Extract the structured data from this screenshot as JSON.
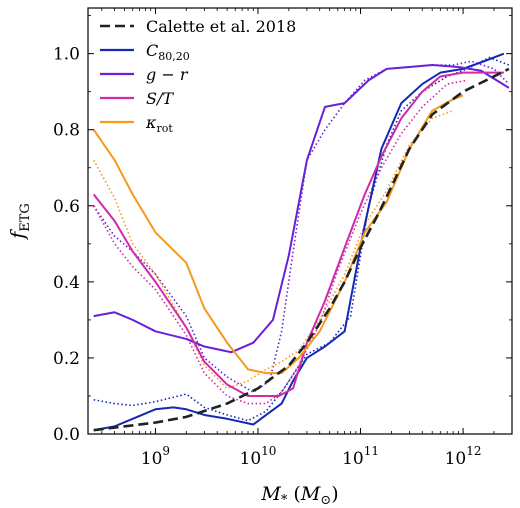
{
  "chart_data": {
    "type": "line",
    "xscale": "log",
    "xlim": [
      220000000.0,
      3000000000000.0
    ],
    "ylim": [
      0.0,
      1.12
    ],
    "x_ticks": [
      {
        "value": 1000000000.0,
        "base": "10",
        "exp": "9"
      },
      {
        "value": 10000000000.0,
        "base": "10",
        "exp": "10"
      },
      {
        "value": 100000000000.0,
        "base": "10",
        "exp": "11"
      },
      {
        "value": 1000000000000.0,
        "base": "10",
        "exp": "12"
      }
    ],
    "y_ticks": [
      {
        "value": 0.0,
        "label": "0.0"
      },
      {
        "value": 0.2,
        "label": "0.2"
      },
      {
        "value": 0.4,
        "label": "0.4"
      },
      {
        "value": 0.6,
        "label": "0.6"
      },
      {
        "value": 0.8,
        "label": "0.8"
      },
      {
        "value": 1.0,
        "label": "1.0"
      }
    ],
    "xlabel": {
      "main": "M",
      "sub": "*",
      "unit_open": " (M",
      "unit_sub": "⊙",
      "unit_close": ")"
    },
    "ylabel": {
      "main": "f",
      "sub": "ETG"
    },
    "legend_position": "top-left",
    "series": [
      {
        "name": "Calette et al. 2018",
        "color": "#222222",
        "style": "dashed",
        "x": [
          250000000.0,
          500000000.0,
          1000000000.0,
          2000000000.0,
          5000000000.0,
          10000000000.0,
          20000000000.0,
          30000000000.0,
          50000000000.0,
          70000000000.0,
          100000000000.0,
          150000000000.0,
          200000000000.0,
          300000000000.0,
          500000000000.0,
          1000000000000.0,
          2000000000000.0,
          2800000000000.0
        ],
        "y": [
          0.01,
          0.02,
          0.03,
          0.045,
          0.08,
          0.12,
          0.18,
          0.24,
          0.33,
          0.4,
          0.49,
          0.58,
          0.65,
          0.75,
          0.84,
          0.9,
          0.94,
          0.96
        ]
      },
      {
        "name": "C80,20",
        "label_main": "C",
        "label_sub": "80,20",
        "color": "#1428b4",
        "style": "solid",
        "x": [
          250000000.0,
          400000000.0,
          600000000.0,
          1000000000.0,
          1500000000.0,
          2000000000.0,
          3000000000.0,
          5000000000.0,
          9000000000.0,
          12000000000.0,
          17000000000.0,
          22000000000.0,
          30000000000.0,
          45000000000.0,
          70000000000.0,
          110000000000.0,
          160000000000.0,
          250000000000.0,
          400000000000.0,
          600000000000.0,
          1000000000000.0,
          1600000000000.0,
          2500000000000.0
        ],
        "y": [
          0.01,
          0.02,
          0.04,
          0.065,
          0.07,
          0.065,
          0.05,
          0.04,
          0.025,
          0.05,
          0.08,
          0.14,
          0.2,
          0.23,
          0.27,
          0.55,
          0.75,
          0.87,
          0.92,
          0.95,
          0.96,
          0.98,
          1.0
        ]
      },
      {
        "name": "C80,20 (dotted)",
        "color": "#1428b4",
        "style": "dotted",
        "x": [
          250000000.0,
          400000000.0,
          600000000.0,
          1000000000.0,
          2000000000.0,
          3000000000.0,
          5000000000.0,
          8000000000.0,
          12000000000.0,
          18000000000.0,
          30000000000.0,
          50000000000.0,
          80000000000.0,
          120000000000.0,
          180000000000.0,
          250000000000.0,
          400000000000.0,
          700000000000.0,
          1100000000000.0,
          1800000000000.0,
          2800000000000.0
        ],
        "y": [
          0.09,
          0.08,
          0.075,
          0.085,
          0.105,
          0.07,
          0.05,
          0.035,
          0.06,
          0.12,
          0.21,
          0.24,
          0.31,
          0.6,
          0.76,
          0.85,
          0.9,
          0.94,
          0.96,
          0.99,
          0.97
        ]
      },
      {
        "name": "g − r",
        "color": "#6a1fd8",
        "style": "solid",
        "x": [
          250000000.0,
          400000000.0,
          600000000.0,
          1000000000.0,
          2000000000.0,
          3000000000.0,
          5500000000.0,
          9000000000.0,
          14000000000.0,
          20000000000.0,
          30000000000.0,
          45000000000.0,
          70000000000.0,
          120000000000.0,
          180000000000.0,
          300000000000.0,
          500000000000.0,
          900000000000.0,
          1500000000000.0,
          2800000000000.0
        ],
        "y": [
          0.31,
          0.32,
          0.3,
          0.27,
          0.25,
          0.23,
          0.215,
          0.24,
          0.3,
          0.47,
          0.72,
          0.86,
          0.87,
          0.93,
          0.96,
          0.965,
          0.97,
          0.965,
          0.955,
          0.91
        ]
      },
      {
        "name": "g − r (dotted)",
        "color": "#6a1fd8",
        "style": "dotted",
        "x": [
          250000000.0,
          400000000.0,
          600000000.0,
          1000000000.0,
          2000000000.0,
          3000000000.0,
          5000000000.0,
          9000000000.0,
          13000000000.0,
          17000000000.0,
          22000000000.0,
          30000000000.0,
          45000000000.0,
          70000000000.0,
          110000000000.0,
          180000000000.0,
          300000000000.0,
          500000000000.0,
          800000000000.0,
          1200000000000.0,
          2000000000000.0,
          2800000000000.0
        ],
        "y": [
          0.6,
          0.52,
          0.48,
          0.42,
          0.31,
          0.2,
          0.15,
          0.11,
          0.14,
          0.27,
          0.48,
          0.72,
          0.8,
          0.87,
          0.93,
          0.96,
          0.965,
          0.97,
          0.97,
          0.98,
          0.96,
          0.92
        ]
      },
      {
        "name": "S/T",
        "label_main": "S/T",
        "color": "#cf2aa8",
        "style": "solid",
        "x": [
          250000000.0,
          400000000.0,
          600000000.0,
          1000000000.0,
          2000000000.0,
          3000000000.0,
          5000000000.0,
          8000000000.0,
          12000000000.0,
          16000000000.0,
          22000000000.0,
          30000000000.0,
          45000000000.0,
          70000000000.0,
          110000000000.0,
          160000000000.0,
          250000000000.0,
          400000000000.0,
          600000000000.0,
          1000000000000.0,
          1600000000000.0,
          2500000000000.0
        ],
        "y": [
          0.63,
          0.56,
          0.48,
          0.4,
          0.28,
          0.19,
          0.13,
          0.1,
          0.1,
          0.1,
          0.12,
          0.24,
          0.35,
          0.49,
          0.63,
          0.73,
          0.83,
          0.9,
          0.94,
          0.95,
          0.95,
          0.95
        ]
      },
      {
        "name": "S/T (dotted)",
        "color": "#cf2aa8",
        "style": "dotted",
        "x": [
          250000000.0,
          400000000.0,
          600000000.0,
          1000000000.0,
          2000000000.0,
          3000000000.0,
          5000000000.0,
          8000000000.0,
          12000000000.0,
          17000000000.0,
          25000000000.0,
          40000000000.0,
          60000000000.0,
          100000000000.0,
          160000000000.0,
          250000000000.0,
          400000000000.0,
          700000000000.0,
          1100000000000.0
        ],
        "y": [
          0.6,
          0.5,
          0.44,
          0.38,
          0.26,
          0.16,
          0.1,
          0.08,
          0.08,
          0.11,
          0.18,
          0.29,
          0.43,
          0.58,
          0.7,
          0.79,
          0.86,
          0.92,
          0.93
        ]
      },
      {
        "name": "κrot",
        "label_main": "κ",
        "label_sub": "rot",
        "color": "#f49a1c",
        "style": "solid",
        "x": [
          250000000.0,
          400000000.0,
          600000000.0,
          1000000000.0,
          2000000000.0,
          3000000000.0,
          5000000000.0,
          8000000000.0,
          12000000000.0,
          17000000000.0,
          25000000000.0,
          40000000000.0,
          70000000000.0,
          110000000000.0,
          180000000000.0,
          300000000000.0,
          500000000000.0,
          800000000000.0,
          1000000000000.0
        ],
        "y": [
          0.8,
          0.72,
          0.63,
          0.53,
          0.45,
          0.33,
          0.24,
          0.17,
          0.16,
          0.16,
          0.2,
          0.27,
          0.4,
          0.53,
          0.61,
          0.75,
          0.85,
          0.88,
          0.89
        ]
      },
      {
        "name": "κrot (dotted)",
        "color": "#f49a1c",
        "style": "dotted",
        "x": [
          250000000.0,
          400000000.0,
          600000000.0,
          1000000000.0,
          2000000000.0,
          3000000000.0,
          5000000000.0,
          8000000000.0,
          12000000000.0,
          17000000000.0,
          25000000000.0,
          40000000000.0,
          70000000000.0,
          110000000000.0,
          180000000000.0,
          300000000000.0,
          500000000000.0,
          800000000000.0
        ],
        "y": [
          0.72,
          0.62,
          0.5,
          0.42,
          0.28,
          0.18,
          0.12,
          0.14,
          0.17,
          0.19,
          0.22,
          0.3,
          0.42,
          0.55,
          0.64,
          0.76,
          0.83,
          0.85
        ]
      }
    ],
    "legend": [
      {
        "series": 0,
        "main": "Calette et al. 2018",
        "sub": ""
      },
      {
        "series": 1,
        "main": "C",
        "sub": "80,20"
      },
      {
        "series": 3,
        "main": "g − r",
        "sub": ""
      },
      {
        "series": 5,
        "main": "S/T",
        "sub": ""
      },
      {
        "series": 7,
        "main": "κ",
        "sub": "rot"
      }
    ]
  }
}
